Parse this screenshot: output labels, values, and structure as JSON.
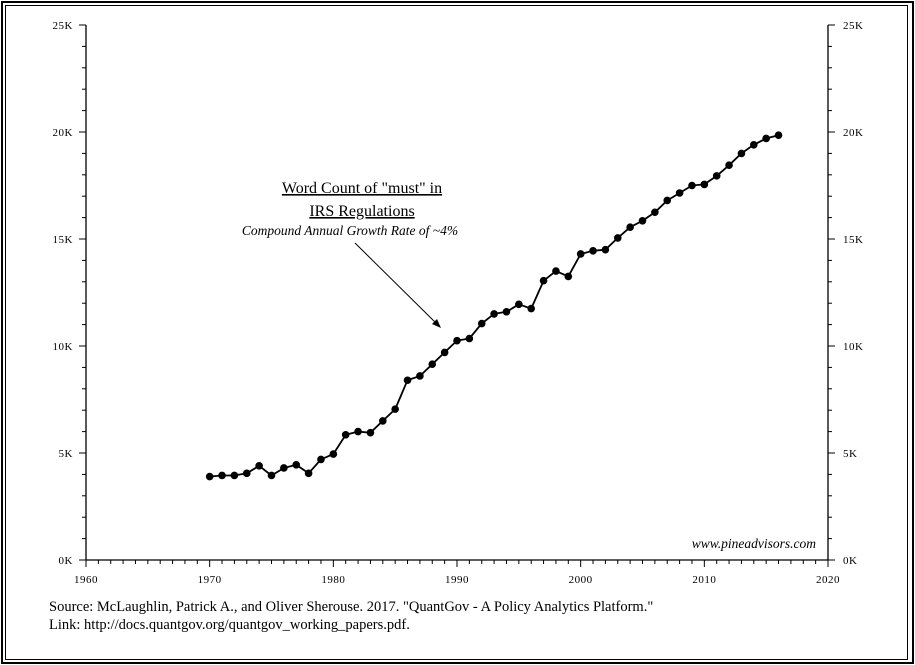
{
  "chart_data": {
    "type": "line",
    "title": "Word Count of \"must\" in IRS Regulations",
    "title_line1": "Word Count of \"must\" in",
    "title_line2": "IRS Regulations",
    "subtitle": "Compound Annual Growth Rate of ~4%",
    "watermark": "www.pineadvisors.com",
    "xlim": [
      1960,
      2020
    ],
    "ylim": [
      0,
      25000
    ],
    "x_ticks": [
      "1960",
      "1970",
      "1980",
      "1990",
      "2000",
      "2010",
      "2020"
    ],
    "y_ticks_left": [
      "0K",
      "5K",
      "10K",
      "15K",
      "20K",
      "25K"
    ],
    "y_ticks_right": [
      "0K",
      "5K",
      "10K",
      "15K",
      "20K",
      "25K"
    ],
    "grid": false,
    "line_color": "#000000",
    "x": [
      1970,
      1971,
      1972,
      1973,
      1974,
      1975,
      1976,
      1977,
      1978,
      1979,
      1980,
      1981,
      1982,
      1983,
      1984,
      1985,
      1986,
      1987,
      1988,
      1989,
      1990,
      1991,
      1992,
      1993,
      1994,
      1995,
      1996,
      1997,
      1998,
      1999,
      2000,
      2001,
      2002,
      2003,
      2004,
      2005,
      2006,
      2007,
      2008,
      2009,
      2010,
      2011,
      2012,
      2013,
      2014,
      2015,
      2016
    ],
    "values": [
      3900,
      3950,
      3950,
      4050,
      4400,
      3950,
      4300,
      4450,
      4050,
      4700,
      4950,
      5850,
      6000,
      5950,
      6500,
      7050,
      8400,
      8600,
      9150,
      9700,
      10250,
      10350,
      11050,
      11500,
      11600,
      11950,
      11750,
      13050,
      13500,
      13250,
      14300,
      14450,
      14500,
      15050,
      15550,
      15850,
      16250,
      16800,
      17150,
      17500,
      17550,
      17950,
      18450,
      19000,
      19400,
      19700,
      19850
    ]
  },
  "footer": {
    "source": "Source: McLaughlin, Patrick A., and Oliver Sherouse. 2017. \"QuantGov - A Policy Analytics Platform.\"",
    "link": "Link: http://docs.quantgov.org/quantgov_working_papers.pdf."
  }
}
